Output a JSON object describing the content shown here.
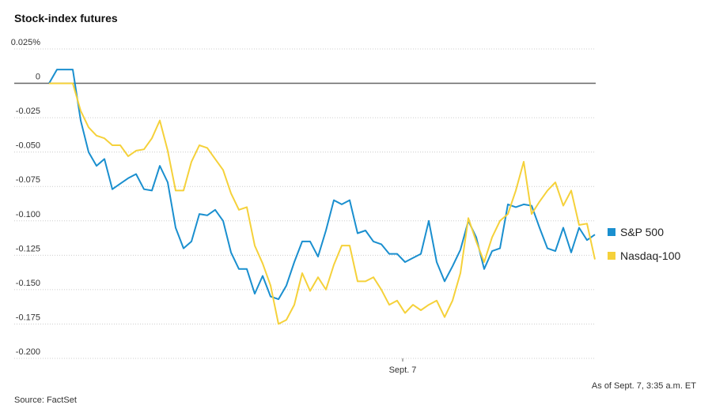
{
  "chart_data": {
    "type": "line",
    "title": "Stock-index futures",
    "source": "Source: FactSet",
    "note": "As of Sept. 7, 3:35 a.m. ET",
    "x": [
      0,
      1,
      2,
      3,
      4,
      5,
      6,
      7,
      8,
      9,
      10,
      11,
      12,
      13,
      14,
      15,
      16,
      17,
      18,
      19,
      20,
      21,
      22,
      23,
      24,
      25,
      26,
      27,
      28,
      29,
      30,
      31,
      32,
      33,
      34,
      35,
      36,
      37,
      38,
      39,
      40,
      41,
      42,
      43,
      44,
      45,
      46,
      47,
      48,
      49,
      50,
      51,
      52,
      53,
      54,
      55,
      56,
      57,
      58,
      59,
      60,
      61,
      62,
      63,
      64,
      65,
      66,
      67,
      68,
      69
    ],
    "xlim": [
      -4.4,
      69.1
    ],
    "xticks": [
      {
        "value": 44.7,
        "label": "Sept. 7"
      }
    ],
    "ylim": [
      -0.2,
      0.025
    ],
    "yticks": [
      {
        "value": 0.025,
        "label": "0.025%"
      },
      0,
      -0.025,
      {
        "value": -0.05,
        "label": "-0.050"
      },
      -0.075,
      {
        "value": -0.1,
        "label": "-0.100"
      },
      -0.125,
      {
        "value": -0.15,
        "label": "-0.150"
      },
      -0.175,
      {
        "value": -0.2,
        "label": "-0.200"
      }
    ],
    "grid": true,
    "legend": "right",
    "series": [
      {
        "name": "S&P 500",
        "color": "#1a8fcf",
        "values": [
          0,
          0.01,
          0.01,
          0.01,
          -0.027,
          -0.05,
          -0.06,
          -0.055,
          -0.077,
          -0.073,
          -0.069,
          -0.066,
          -0.077,
          -0.078,
          -0.06,
          -0.072,
          -0.105,
          -0.12,
          -0.115,
          -0.095,
          -0.096,
          -0.092,
          -0.1,
          -0.123,
          -0.135,
          -0.135,
          -0.153,
          -0.14,
          -0.155,
          -0.157,
          -0.147,
          -0.13,
          -0.115,
          -0.115,
          -0.126,
          -0.107,
          -0.085,
          -0.088,
          -0.085,
          -0.109,
          -0.107,
          -0.115,
          -0.117,
          -0.124,
          -0.124,
          -0.13,
          -0.127,
          -0.124,
          -0.1,
          -0.13,
          -0.144,
          -0.133,
          -0.121,
          -0.1,
          -0.112,
          -0.135,
          -0.122,
          -0.12,
          -0.088,
          -0.09,
          -0.088,
          -0.089,
          -0.105,
          -0.12,
          -0.122,
          -0.105,
          -0.123,
          -0.105,
          -0.114,
          -0.11
        ]
      },
      {
        "name": "Nasdaq-100",
        "color": "#f5d13a",
        "values": [
          0,
          0,
          0,
          0,
          -0.02,
          -0.032,
          -0.038,
          -0.04,
          -0.045,
          -0.045,
          -0.053,
          -0.049,
          -0.048,
          -0.04,
          -0.027,
          -0.049,
          -0.078,
          -0.078,
          -0.057,
          -0.045,
          -0.047,
          -0.055,
          -0.063,
          -0.08,
          -0.092,
          -0.09,
          -0.118,
          -0.131,
          -0.147,
          -0.175,
          -0.172,
          -0.161,
          -0.138,
          -0.151,
          -0.141,
          -0.15,
          -0.132,
          -0.118,
          -0.118,
          -0.144,
          -0.144,
          -0.141,
          -0.15,
          -0.161,
          -0.158,
          -0.167,
          -0.161,
          -0.165,
          -0.161,
          -0.158,
          -0.17,
          -0.158,
          -0.138,
          -0.098,
          -0.115,
          -0.13,
          -0.112,
          -0.1,
          -0.095,
          -0.078,
          -0.057,
          -0.095,
          -0.086,
          -0.078,
          -0.072,
          -0.089,
          -0.078,
          -0.103,
          -0.102,
          -0.128
        ]
      }
    ]
  }
}
